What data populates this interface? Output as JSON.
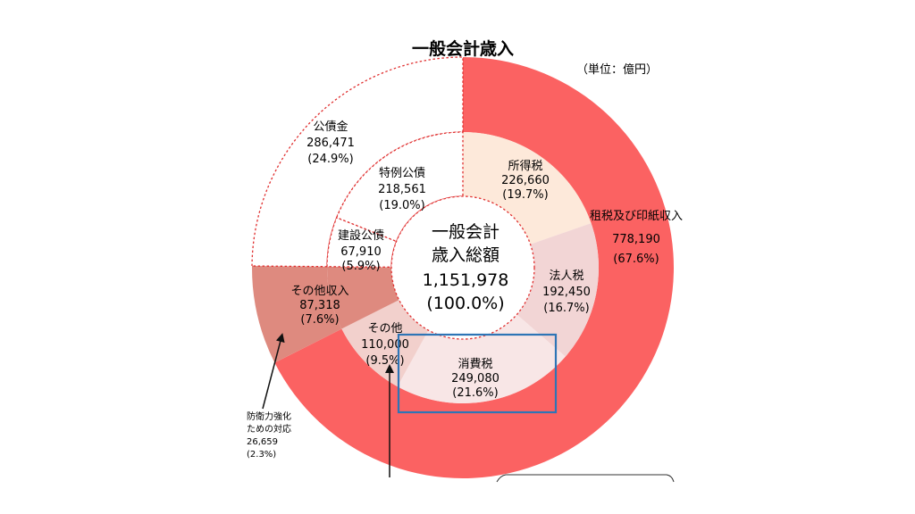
{
  "chart_data": {
    "type": "pie",
    "title": "一般会計歳入",
    "unit_label": "（単位：億円）",
    "center": {
      "line1": "一般会計",
      "line2": "歳入総額",
      "value": "1,151,978",
      "percent": "(100.0%)"
    },
    "total": 1151978,
    "outer_ring": [
      {
        "name": "租税及び印紙収入",
        "value": 778190,
        "percent": "(67.6%)",
        "value_label": "778,190",
        "color": "#fb6262",
        "dashed": false
      },
      {
        "name": "その他収入",
        "value": 87318,
        "percent": "(7.6%)",
        "value_label": "87,318",
        "color": "#de8a7f",
        "dashed": false
      },
      {
        "name": "公債金",
        "value": 286471,
        "percent": "(24.9%)",
        "value_label": "286,471",
        "color": "#ffffff",
        "dashed": true
      }
    ],
    "inner_ring": [
      {
        "name": "所得税",
        "value": 226660,
        "percent": "(19.7%)",
        "value_label": "226,660",
        "color": "#fde9da",
        "dashed": false
      },
      {
        "name": "法人税",
        "value": 192450,
        "percent": "(16.7%)",
        "value_label": "192,450",
        "color": "#f2d5d5",
        "dashed": false
      },
      {
        "name": "消費税",
        "value": 249080,
        "percent": "(21.6%)",
        "value_label": "249,080",
        "color": "#f8e6e6",
        "dashed": false
      },
      {
        "name": "その他",
        "value": 110000,
        "percent": "(9.5%)",
        "value_label": "110,000",
        "color": "#f2d0cc",
        "dashed": false
      },
      {
        "name": "その他収入",
        "value": 87318,
        "percent": "",
        "value_label": "",
        "color": "#de8a7f",
        "dashed": false
      },
      {
        "name": "建設公債",
        "value": 67910,
        "percent": "(5.9%)",
        "value_label": "67,910",
        "color": "#ffffff",
        "dashed": true
      },
      {
        "name": "特例公債",
        "value": 218561,
        "percent": "(19.0%)",
        "value_label": "218,561",
        "color": "#ffffff",
        "dashed": true
      }
    ],
    "annotation": {
      "line1": "防衛力強化",
      "line2": "ための対応",
      "value": "26,659",
      "percent": "(2.3%)"
    },
    "highlight_label": "消費税",
    "highlight_color": "#2e75b6"
  }
}
